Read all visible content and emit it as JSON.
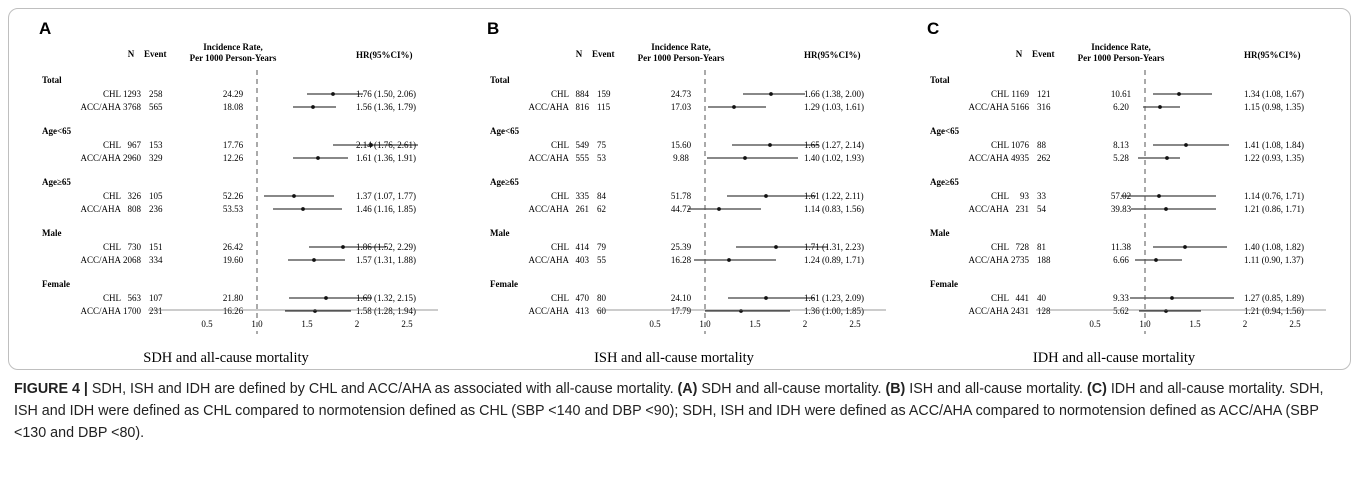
{
  "header_labels": {
    "n": "N",
    "event": "Event",
    "rate_line1": "Incidence Rate,",
    "rate_line2": "Per 1000 Person-Years",
    "hr": "HR(95%CI%)"
  },
  "chart_data": [
    {
      "type": "forest",
      "panel": "A",
      "title": "SDH and all-cause mortality",
      "x_ticks": [
        "0.5",
        "1.0",
        "1.5",
        "2",
        "2.5"
      ],
      "reference_line": 1.0,
      "groups": [
        {
          "name": "Total",
          "rows": [
            {
              "def": "CHL",
              "n": "1293",
              "event": "258",
              "rate": "24.29",
              "hr": 1.76,
              "lo": 1.5,
              "hi": 2.06,
              "ci_text": "1.76 (1.50, 2.06)"
            },
            {
              "def": "ACC/AHA",
              "n": "3768",
              "event": "565",
              "rate": "18.08",
              "hr": 1.56,
              "lo": 1.36,
              "hi": 1.79,
              "ci_text": "1.56 (1.36, 1.79)"
            }
          ]
        },
        {
          "name": "Age<65",
          "rows": [
            {
              "def": "CHL",
              "n": "967",
              "event": "153",
              "rate": "17.76",
              "hr": 2.14,
              "lo": 1.76,
              "hi": 2.61,
              "ci_text": "2.14 (1.76, 2.61)"
            },
            {
              "def": "ACC/AHA",
              "n": "2960",
              "event": "329",
              "rate": "12.26",
              "hr": 1.61,
              "lo": 1.36,
              "hi": 1.91,
              "ci_text": "1.61 (1.36, 1.91)"
            }
          ]
        },
        {
          "name": "Age≥65",
          "rows": [
            {
              "def": "CHL",
              "n": "326",
              "event": "105",
              "rate": "52.26",
              "hr": 1.37,
              "lo": 1.07,
              "hi": 1.77,
              "ci_text": "1.37 (1.07, 1.77)"
            },
            {
              "def": "ACC/AHA",
              "n": "808",
              "event": "236",
              "rate": "53.53",
              "hr": 1.46,
              "lo": 1.16,
              "hi": 1.85,
              "ci_text": "1.46 (1.16, 1.85)"
            }
          ]
        },
        {
          "name": "Male",
          "rows": [
            {
              "def": "CHL",
              "n": "730",
              "event": "151",
              "rate": "26.42",
              "hr": 1.86,
              "lo": 1.52,
              "hi": 2.29,
              "ci_text": "1.86 (1.52, 2.29)"
            },
            {
              "def": "ACC/AHA",
              "n": "2068",
              "event": "334",
              "rate": "19.60",
              "hr": 1.57,
              "lo": 1.31,
              "hi": 1.88,
              "ci_text": "1.57 (1.31, 1.88)"
            }
          ]
        },
        {
          "name": "Female",
          "rows": [
            {
              "def": "CHL",
              "n": "563",
              "event": "107",
              "rate": "21.80",
              "hr": 1.69,
              "lo": 1.32,
              "hi": 2.15,
              "ci_text": "1.69 (1.32, 2.15)"
            },
            {
              "def": "ACC/AHA",
              "n": "1700",
              "event": "231",
              "rate": "16.26",
              "hr": 1.58,
              "lo": 1.28,
              "hi": 1.94,
              "ci_text": "1.58 (1.28, 1.94)"
            }
          ]
        }
      ]
    },
    {
      "type": "forest",
      "panel": "B",
      "title": "ISH and all-cause mortality",
      "x_ticks": [
        "0.5",
        "1.0",
        "1.5",
        "2",
        "2.5"
      ],
      "reference_line": 1.0,
      "groups": [
        {
          "name": "Total",
          "rows": [
            {
              "def": "CHL",
              "n": "884",
              "event": "159",
              "rate": "24.73",
              "hr": 1.66,
              "lo": 1.38,
              "hi": 2.0,
              "ci_text": "1.66 (1.38, 2.00)"
            },
            {
              "def": "ACC/AHA",
              "n": "816",
              "event": "115",
              "rate": "17.03",
              "hr": 1.29,
              "lo": 1.03,
              "hi": 1.61,
              "ci_text": "1.29 (1.03, 1.61)"
            }
          ]
        },
        {
          "name": "Age<65",
          "rows": [
            {
              "def": "CHL",
              "n": "549",
              "event": "75",
              "rate": "15.60",
              "hr": 1.65,
              "lo": 1.27,
              "hi": 2.14,
              "ci_text": "1.65 (1.27, 2.14)"
            },
            {
              "def": "ACC/AHA",
              "n": "555",
              "event": "53",
              "rate": "9.88",
              "hr": 1.4,
              "lo": 1.02,
              "hi": 1.93,
              "ci_text": "1.40 (1.02, 1.93)"
            }
          ]
        },
        {
          "name": "Age≥65",
          "rows": [
            {
              "def": "CHL",
              "n": "335",
              "event": "84",
              "rate": "51.78",
              "hr": 1.61,
              "lo": 1.22,
              "hi": 2.11,
              "ci_text": "1.61 (1.22, 2.11)"
            },
            {
              "def": "ACC/AHA",
              "n": "261",
              "event": "62",
              "rate": "44.72",
              "hr": 1.14,
              "lo": 0.83,
              "hi": 1.56,
              "ci_text": "1.14 (0.83, 1.56)"
            }
          ]
        },
        {
          "name": "Male",
          "rows": [
            {
              "def": "CHL",
              "n": "414",
              "event": "79",
              "rate": "25.39",
              "hr": 1.71,
              "lo": 1.31,
              "hi": 2.23,
              "ci_text": "1.71 (1.31, 2.23)"
            },
            {
              "def": "ACC/AHA",
              "n": "403",
              "event": "55",
              "rate": "16.28",
              "hr": 1.24,
              "lo": 0.89,
              "hi": 1.71,
              "ci_text": "1.24 (0.89, 1.71)"
            }
          ]
        },
        {
          "name": "Female",
          "rows": [
            {
              "def": "CHL",
              "n": "470",
              "event": "80",
              "rate": "24.10",
              "hr": 1.61,
              "lo": 1.23,
              "hi": 2.09,
              "ci_text": "1.61 (1.23, 2.09)"
            },
            {
              "def": "ACC/AHA",
              "n": "413",
              "event": "60",
              "rate": "17.79",
              "hr": 1.36,
              "lo": 1.0,
              "hi": 1.85,
              "ci_text": "1.36 (1.00, 1.85)"
            }
          ]
        }
      ]
    },
    {
      "type": "forest",
      "panel": "C",
      "title": "IDH and all-cause mortality",
      "x_ticks": [
        "0.5",
        "1.0",
        "1.5",
        "2",
        "2.5"
      ],
      "reference_line": 1.0,
      "groups": [
        {
          "name": "Total",
          "rows": [
            {
              "def": "CHL",
              "n": "1169",
              "event": "121",
              "rate": "10.61",
              "hr": 1.34,
              "lo": 1.08,
              "hi": 1.67,
              "ci_text": "1.34 (1.08, 1.67)"
            },
            {
              "def": "ACC/AHA",
              "n": "5166",
              "event": "316",
              "rate": "6.20",
              "hr": 1.15,
              "lo": 0.98,
              "hi": 1.35,
              "ci_text": "1.15 (0.98, 1.35)"
            }
          ]
        },
        {
          "name": "Age<65",
          "rows": [
            {
              "def": "CHL",
              "n": "1076",
              "event": "88",
              "rate": "8.13",
              "hr": 1.41,
              "lo": 1.08,
              "hi": 1.84,
              "ci_text": "1.41 (1.08, 1.84)"
            },
            {
              "def": "ACC/AHA",
              "n": "4935",
              "event": "262",
              "rate": "5.28",
              "hr": 1.22,
              "lo": 0.93,
              "hi": 1.35,
              "ci_text": "1.22 (0.93, 1.35)"
            }
          ]
        },
        {
          "name": "Age≥65",
          "rows": [
            {
              "def": "CHL",
              "n": "93",
              "event": "33",
              "rate": "57.02",
              "hr": 1.14,
              "lo": 0.76,
              "hi": 1.71,
              "ci_text": "1.14 (0.76, 1.71)"
            },
            {
              "def": "ACC/AHA",
              "n": "231",
              "event": "54",
              "rate": "39.83",
              "hr": 1.21,
              "lo": 0.86,
              "hi": 1.71,
              "ci_text": "1.21 (0.86, 1.71)"
            }
          ]
        },
        {
          "name": "Male",
          "rows": [
            {
              "def": "CHL",
              "n": "728",
              "event": "81",
              "rate": "11.38",
              "hr": 1.4,
              "lo": 1.08,
              "hi": 1.82,
              "ci_text": "1.40 (1.08, 1.82)"
            },
            {
              "def": "ACC/AHA",
              "n": "2735",
              "event": "188",
              "rate": "6.66",
              "hr": 1.11,
              "lo": 0.9,
              "hi": 1.37,
              "ci_text": "1.11 (0.90, 1.37)"
            }
          ]
        },
        {
          "name": "Female",
          "rows": [
            {
              "def": "CHL",
              "n": "441",
              "event": "40",
              "rate": "9.33",
              "hr": 1.27,
              "lo": 0.85,
              "hi": 1.89,
              "ci_text": "1.27 (0.85, 1.89)"
            },
            {
              "def": "ACC/AHA",
              "n": "2431",
              "event": "128",
              "rate": "5.62",
              "hr": 1.21,
              "lo": 0.94,
              "hi": 1.56,
              "ci_text": "1.21 (0.94, 1.56)"
            }
          ]
        }
      ]
    }
  ],
  "caption": {
    "label": "FIGURE 4 |",
    "text1": " SDH, ISH and IDH are defined by CHL and ACC/AHA as associated with all-cause mortality. ",
    "a_label": "(A)",
    "a_text": " SDH and all-cause mortality. ",
    "b_label": "(B)",
    "b_text": " ISH and all-cause mortality. ",
    "c_label": "(C)",
    "c_text": " IDH and all-cause mortality. SDH, ISH and IDH were defined as CHL compared to normotension defined as CHL (SBP <140 and DBP <90); SDH, ISH and IDH were defined as ACC/AHA compared to normotension defined as ACC/AHA (SBP <130 and DBP <80)."
  }
}
